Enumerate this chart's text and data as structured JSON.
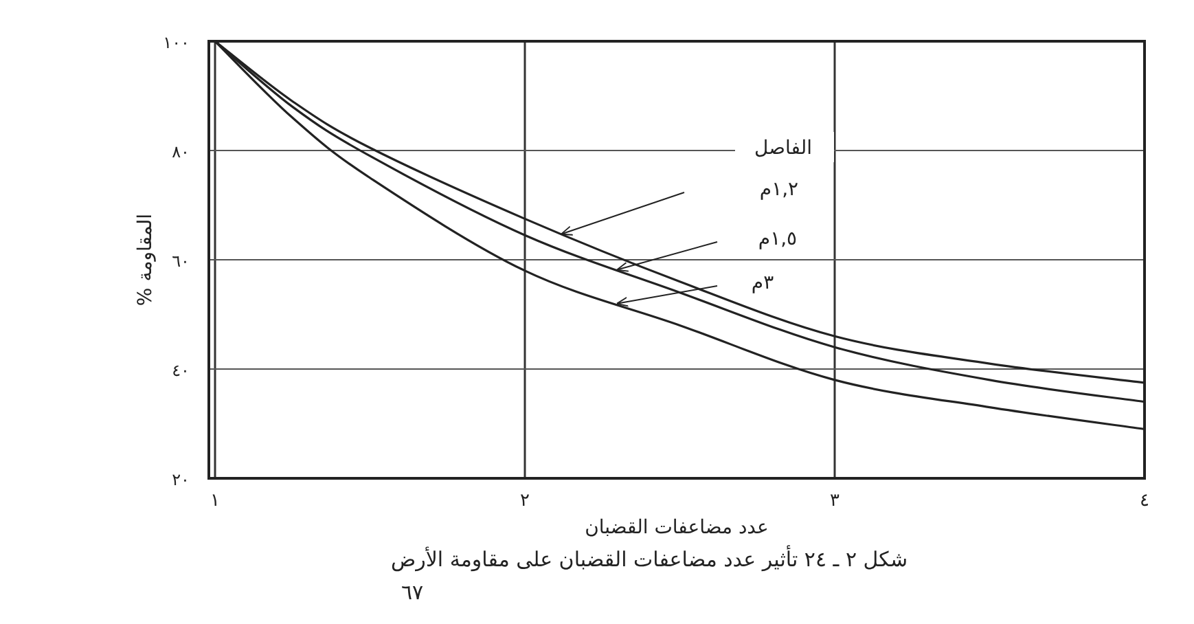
{
  "chart_data": {
    "type": "line",
    "xlabel": "عدد مضاعفات القضبان",
    "ylabel": "المقاومة %",
    "legend_title": "الفاصل",
    "x": [
      1,
      1.25,
      1.5,
      2,
      2.5,
      3,
      3.5,
      4
    ],
    "series": [
      {
        "color": "#222222",
        "values": [
          100,
          89,
          80.5,
          67.5,
          56,
          46,
          41,
          37.5
        ]
      },
      {
        "color": "#222222",
        "values": [
          100,
          88,
          79,
          64.5,
          54,
          44,
          38,
          34
        ]
      },
      {
        "color": "#222222",
        "values": [
          100,
          86,
          75,
          58,
          48,
          38,
          33,
          29
        ]
      }
    ],
    "xlim": [
      0.98,
      4
    ],
    "xticks": [
      {
        "value": 1,
        "label": "١"
      },
      {
        "value": 2,
        "label": "٢"
      },
      {
        "value": 3,
        "label": "٣"
      },
      {
        "value": 4,
        "label": "٤"
      }
    ],
    "ylim": [
      20,
      100
    ],
    "yticks": [
      {
        "value": 20,
        "label": "٢٠"
      },
      {
        "value": 40,
        "label": "٤٠"
      },
      {
        "value": 60,
        "label": "٦٠"
      },
      {
        "value": 80,
        "label": "٨٠"
      },
      {
        "value": 100,
        "label": "١٠٠"
      }
    ],
    "grid": true,
    "marker": "none",
    "line_style": "solid",
    "annotations": [
      "١,٢م",
      "١,٥م",
      "٣م",
      "شكل ٢ ـ ٢٤ تأثير عدد مضاعفات القضبان على مقاومة الأرض",
      "٦٧"
    ]
  }
}
